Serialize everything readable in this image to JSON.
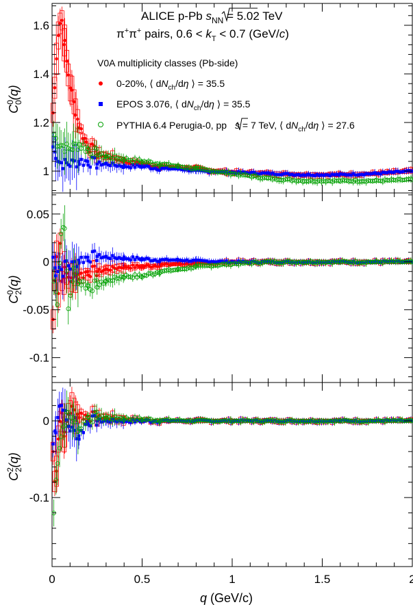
{
  "chart_data": [
    {
      "type": "scatter",
      "panel": "top",
      "title_line1_prefix": "ALICE p-Pb ",
      "title_line1_s": "s",
      "title_line1_sub": "NN",
      "title_line1_suffix": " = 5.02 TeV",
      "title_line2_pre": "π",
      "title_line2_sup1": "+",
      "title_line2_mid": "π",
      "title_line2_sup2": "+",
      "title_line2_a": " pairs, 0.6 < ",
      "title_line2_k": "k",
      "title_line2_ksub": "T",
      "title_line2_b": " < 0.7 (GeV/",
      "title_line2_c": "c",
      "title_line2_end": ")",
      "legend_header": "V0A multiplicity classes (Pb-side)",
      "ylabel": {
        "main": "C",
        "sup": "0",
        "sub": "0",
        "arg": "(q)"
      },
      "ylim": [
        0.91,
        1.69
      ],
      "yticks": [
        1.0,
        1.2,
        1.4,
        1.6
      ],
      "ytick_labels": [
        "1",
        "1.2",
        "1.4",
        "1.6"
      ],
      "series": [
        {
          "name": "0-20%, ⟨ dNch/dη ⟩ = 35.5",
          "label_parts": [
            "0-20%, ",
            "⟨ d",
            "N",
            "ch",
            "/d",
            "η",
            " ⟩ = 35.5"
          ],
          "color": "#ff0000",
          "marker": "filled-circle",
          "x": [
            0.005,
            0.015,
            0.025,
            0.035,
            0.045,
            0.055,
            0.07,
            0.09,
            0.11,
            0.13,
            0.15,
            0.17,
            0.19,
            0.21,
            0.25,
            0.3,
            0.4,
            0.5,
            0.6,
            0.7,
            0.8,
            0.9,
            1.0,
            1.2,
            1.4,
            1.6,
            1.8,
            2.0
          ],
          "y": [
            1.24,
            1.34,
            1.48,
            1.57,
            1.61,
            1.62,
            1.52,
            1.4,
            1.32,
            1.25,
            1.19,
            1.15,
            1.12,
            1.1,
            1.07,
            1.06,
            1.04,
            1.03,
            1.02,
            1.015,
            1.01,
            1.0,
            0.995,
            0.99,
            0.985,
            0.985,
            0.99,
            1.0
          ]
        },
        {
          "name": "EPOS 3.076, ⟨ dNch/dη ⟩ = 35.5",
          "label_parts": [
            "EPOS 3.076, ",
            "⟨ d",
            "N",
            "ch",
            "/d",
            "η",
            " ⟩ = 35.5"
          ],
          "color": "#0000ff",
          "marker": "filled-square",
          "x": [
            0.005,
            0.02,
            0.04,
            0.06,
            0.08,
            0.1,
            0.15,
            0.2,
            0.25,
            0.3,
            0.4,
            0.5,
            0.6,
            0.7,
            0.8,
            1.0,
            1.2,
            1.4,
            1.6,
            1.8,
            2.0
          ],
          "y": [
            1.1,
            1.07,
            1.04,
            1.03,
            1.03,
            1.03,
            1.04,
            1.04,
            1.03,
            1.03,
            1.02,
            1.02,
            1.01,
            1.01,
            1.0,
            0.995,
            0.99,
            0.985,
            0.985,
            0.99,
            1.0
          ]
        },
        {
          "name": "PYTHIA 6.4 Perugia-0, pp √s = 7 TeV, ⟨ dNch/dη ⟩ = 27.6",
          "label_parts": [
            "PYTHIA 6.4 Perugia-0, pp ",
            "s",
            " = 7 TeV, ⟨ d",
            "N",
            "ch",
            "/d",
            "η",
            " ⟩ = 27.6"
          ],
          "color": "#00a000",
          "marker": "open-circle",
          "x": [
            0.01,
            0.03,
            0.05,
            0.07,
            0.09,
            0.12,
            0.15,
            0.2,
            0.25,
            0.3,
            0.4,
            0.5,
            0.6,
            0.7,
            0.8,
            1.0,
            1.2,
            1.4,
            1.6,
            1.8,
            2.0
          ],
          "y": [
            1.15,
            1.12,
            1.11,
            1.1,
            1.09,
            1.1,
            1.11,
            1.09,
            1.07,
            1.06,
            1.05,
            1.04,
            1.03,
            1.02,
            1.01,
            0.99,
            0.97,
            0.96,
            0.96,
            0.96,
            0.965
          ]
        }
      ]
    },
    {
      "type": "scatter",
      "panel": "middle",
      "ylabel": {
        "main": "C",
        "sup": "0",
        "sub": "2",
        "arg": "(q)"
      },
      "ylim": [
        -0.126,
        0.072
      ],
      "yticks": [
        -0.1,
        -0.05,
        0.0,
        0.05
      ],
      "ytick_labels": [
        "-0.1",
        "-0.05",
        "0",
        "0.05"
      ],
      "series": [
        {
          "color": "#ff0000",
          "marker": "filled-circle",
          "x": [
            0.005,
            0.015,
            0.025,
            0.035,
            0.045,
            0.055,
            0.07,
            0.09,
            0.11,
            0.13,
            0.15,
            0.2,
            0.25,
            0.3,
            0.4,
            0.5,
            0.6,
            0.7,
            0.8,
            1.0,
            1.2,
            1.4,
            1.6,
            1.8,
            2.0
          ],
          "y": [
            -0.06,
            -0.02,
            0.01,
            -0.03,
            0.02,
            -0.02,
            -0.01,
            -0.015,
            -0.02,
            -0.01,
            -0.015,
            -0.01,
            -0.01,
            -0.008,
            -0.005,
            -0.005,
            -0.003,
            -0.002,
            -0.002,
            0.0,
            0.0,
            0.0,
            0.0,
            0.0,
            0.0
          ]
        },
        {
          "color": "#0000ff",
          "marker": "filled-square",
          "x": [
            0.005,
            0.02,
            0.04,
            0.06,
            0.08,
            0.1,
            0.15,
            0.2,
            0.25,
            0.3,
            0.4,
            0.5,
            0.6,
            0.7,
            0.8,
            1.0,
            1.2,
            1.4,
            1.6,
            1.8,
            2.0
          ],
          "y": [
            0.005,
            -0.01,
            -0.005,
            -0.01,
            0.0,
            -0.005,
            0.002,
            0.005,
            0.006,
            0.005,
            0.004,
            0.003,
            0.002,
            0.002,
            0.001,
            0.0,
            0.0,
            0.0,
            0.0,
            0.0,
            0.0
          ]
        },
        {
          "color": "#00a000",
          "marker": "open-circle",
          "x": [
            0.01,
            0.03,
            0.05,
            0.07,
            0.09,
            0.12,
            0.15,
            0.2,
            0.25,
            0.3,
            0.4,
            0.5,
            0.6,
            0.7,
            0.8,
            1.0,
            1.2,
            1.4,
            1.6,
            1.8,
            2.0
          ],
          "y": [
            -0.02,
            -0.04,
            0.03,
            0.04,
            -0.05,
            -0.01,
            -0.02,
            -0.025,
            -0.025,
            -0.02,
            -0.015,
            -0.015,
            -0.01,
            -0.008,
            -0.005,
            -0.002,
            0.0,
            0.0,
            0.0,
            0.0,
            0.0
          ]
        }
      ]
    },
    {
      "type": "scatter",
      "panel": "bottom",
      "ylabel": {
        "main": "C",
        "sup": "2",
        "sub": "2",
        "arg": "(q)"
      },
      "ylim": [
        -0.19,
        0.05
      ],
      "yticks": [
        -0.1,
        0.0
      ],
      "ytick_labels": [
        "-0.1",
        "0"
      ],
      "xlabel_main": "q",
      "xlabel_unit": " (GeV/c)",
      "xlim": [
        0,
        2
      ],
      "xticks": [
        0,
        0.5,
        1,
        1.5,
        2
      ],
      "xtick_labels": [
        "0",
        "0.5",
        "1",
        "1.5",
        "2"
      ],
      "series": [
        {
          "color": "#ff0000",
          "marker": "filled-circle",
          "x": [
            0.005,
            0.015,
            0.025,
            0.035,
            0.045,
            0.055,
            0.07,
            0.09,
            0.11,
            0.13,
            0.15,
            0.2,
            0.25,
            0.3,
            0.4,
            0.5,
            0.6,
            0.8,
            1.0,
            1.2,
            1.4,
            1.6,
            1.8,
            2.0
          ],
          "y": [
            -0.04,
            -0.08,
            -0.06,
            -0.02,
            0.0,
            0.01,
            -0.02,
            0.01,
            0.015,
            0.01,
            0.008,
            0.006,
            0.005,
            0.004,
            0.002,
            0.001,
            0.0,
            0.0,
            0.0,
            0.0,
            0.0,
            0.0,
            0.0,
            0.0
          ]
        },
        {
          "color": "#0000ff",
          "marker": "filled-square",
          "x": [
            0.005,
            0.02,
            0.04,
            0.06,
            0.08,
            0.1,
            0.15,
            0.2,
            0.25,
            0.3,
            0.4,
            0.5,
            0.6,
            0.8,
            1.0,
            1.2,
            1.4,
            1.6,
            1.8,
            2.0
          ],
          "y": [
            -0.03,
            -0.01,
            0.02,
            0.02,
            0.0,
            -0.01,
            -0.02,
            0.0,
            0.0,
            0.0,
            0.0,
            0.0,
            0.0,
            0.0,
            0.0,
            0.0,
            0.0,
            0.0,
            0.0,
            0.0
          ]
        },
        {
          "color": "#00a000",
          "marker": "open-circle",
          "x": [
            0.01,
            0.03,
            0.05,
            0.07,
            0.09,
            0.12,
            0.15,
            0.2,
            0.25,
            0.3,
            0.4,
            0.5,
            0.6,
            0.8,
            1.0,
            1.2,
            1.4,
            1.6,
            1.8,
            2.0
          ],
          "y": [
            -0.12,
            -0.05,
            -0.02,
            0.0,
            0.01,
            0.0,
            -0.01,
            0.005,
            0.005,
            0.004,
            0.003,
            0.002,
            0.001,
            0.0,
            0.0,
            0.0,
            0.0,
            0.0,
            0.0,
            0.0
          ]
        }
      ]
    }
  ]
}
